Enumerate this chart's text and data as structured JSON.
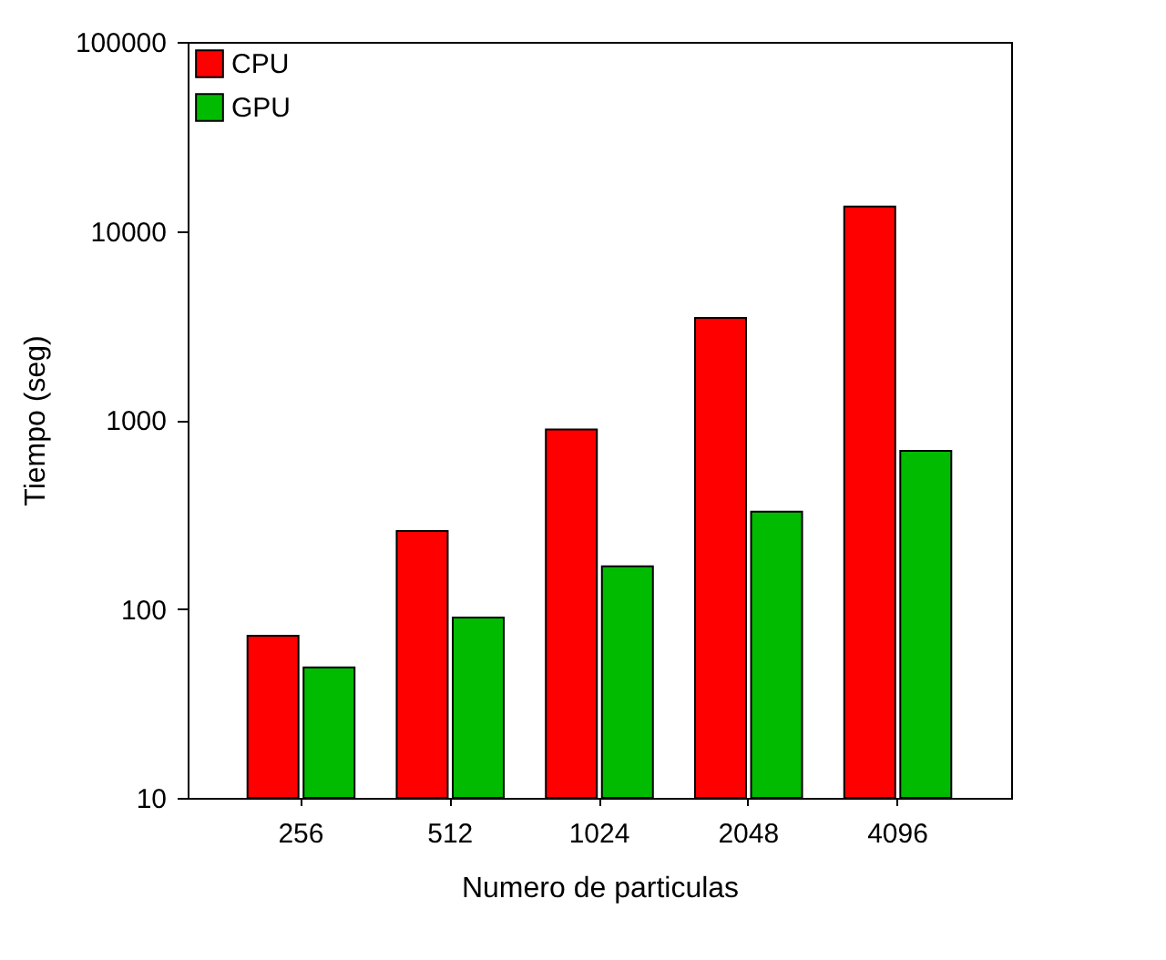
{
  "chart_data": {
    "type": "bar",
    "xlabel": "Numero de particulas",
    "ylabel": "Tiempo (seg)",
    "categories": [
      "256",
      "512",
      "1024",
      "2048",
      "4096"
    ],
    "series": [
      {
        "name": "CPU",
        "color": "#ff0000",
        "values": [
          72,
          258,
          890,
          3470,
          13460
        ]
      },
      {
        "name": "GPU",
        "color": "#00bb00",
        "values": [
          49,
          90,
          168,
          327,
          686
        ]
      }
    ],
    "log": "y",
    "ylim": [
      10,
      100000
    ],
    "yticks": [
      10,
      100,
      1000,
      10000,
      100000
    ],
    "grid": false,
    "legend": "top left"
  }
}
